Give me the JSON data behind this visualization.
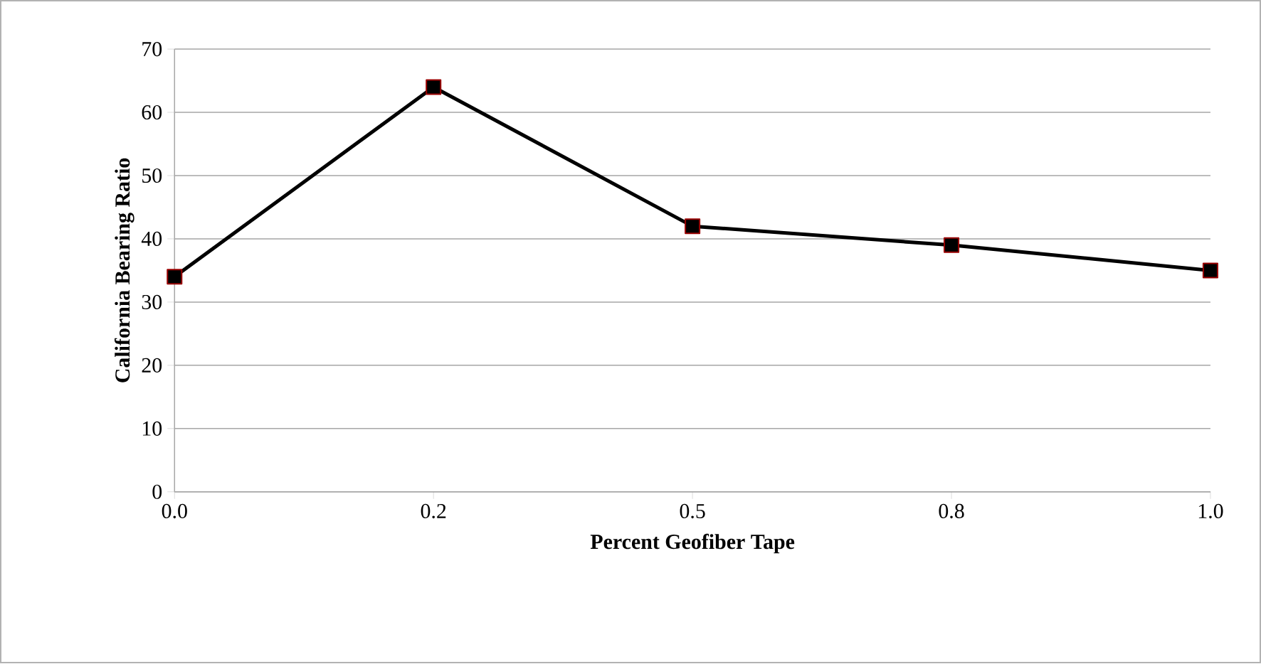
{
  "chart_data": {
    "type": "line",
    "xlabel": "Percent Geofiber Tape",
    "ylabel": "California Bearing Ratio",
    "categories": [
      "0.0",
      "0.2",
      "0.5",
      "0.8",
      "1.0"
    ],
    "series": [
      {
        "color": "#000000",
        "values": [
          34,
          64,
          42,
          39,
          35
        ]
      }
    ],
    "ylim": [
      0,
      70
    ],
    "yticks": [
      0,
      10,
      20,
      30,
      40,
      50,
      60,
      70
    ],
    "grid": "y",
    "marker": "square",
    "line_style": "solid"
  }
}
